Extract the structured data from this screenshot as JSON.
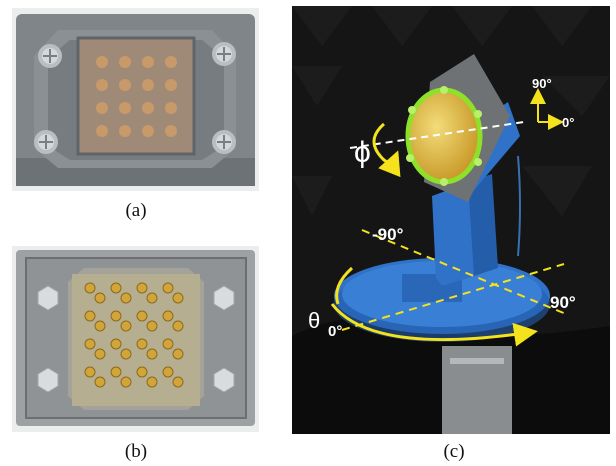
{
  "captions": {
    "a": "(a)",
    "b": "(b)",
    "c": "(c)"
  },
  "annotations": {
    "phi": "ϕ",
    "theta": "θ",
    "elev_90": "90°",
    "elev_0": "0°",
    "az_minus90": "-90°",
    "az_0": "0°",
    "az_90": "90°"
  },
  "colors": {
    "housing_gray": "#7f8589",
    "copper_pads": "#c89a6a",
    "gold_connectors": "#d2a53a",
    "pedestal_blue": "#2f72c8",
    "lens_yellow": "#e6c54a",
    "highlight_green": "#8fe02a",
    "arrow_yellow": "#f4e21c",
    "foam_black": "#151515"
  }
}
